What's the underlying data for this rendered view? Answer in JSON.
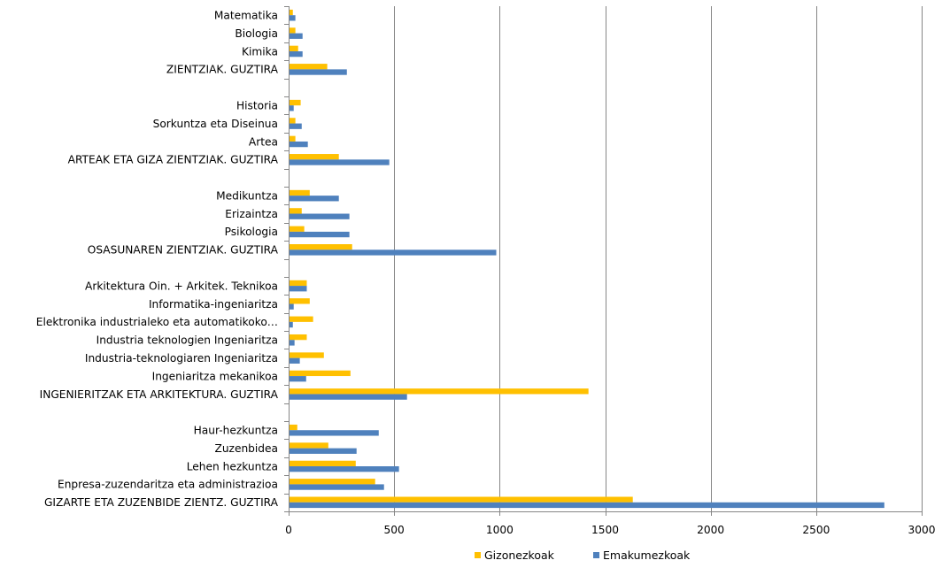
{
  "chart_data": {
    "type": "bar",
    "orientation": "horizontal",
    "title": "",
    "xlabel": "",
    "ylabel": "",
    "xlim": [
      0,
      3000
    ],
    "xticks": [
      0,
      500,
      1000,
      1500,
      2000,
      2500,
      3000
    ],
    "grid": "vertical",
    "legend_position": "bottom",
    "categories": [
      "Matematika",
      "Biologia",
      "Kimika",
      "ZIENTZIAK. GUZTIRA",
      "",
      "Historia",
      "Sorkuntza eta Diseinua",
      "Artea",
      "ARTEAK ETA GIZA ZIENTZIAK. GUZTIRA",
      "",
      "Medikuntza",
      "Erizaintza",
      "Psikologia",
      "OSASUNAREN ZIENTZIAK. GUZTIRA",
      "",
      "Arkitektura Oin. + Arkitek. Teknikoa",
      "Informatika-ingeniaritza",
      "Elektronika industrialeko eta automatikoko…",
      "Industria teknologien Ingeniaritza",
      "Industria-teknologiaren Ingeniaritza",
      "Ingeniaritza mekanikoa",
      "INGENIERITZAK ETA ARKITEKTURA. GUZTIRA",
      "",
      "Haur-hezkuntza",
      "Zuzenbidea",
      "Lehen hezkuntza",
      "Enpresa-zuzendaritza eta administrazioa",
      "GIZARTE ETA ZUZENBIDE ZIENTZ. GUZTIRA"
    ],
    "series": [
      {
        "name": "Gizonezkoak",
        "color": "#FFC000",
        "values": [
          20,
          32,
          45,
          183,
          null,
          57,
          32,
          32,
          238,
          null,
          100,
          62,
          74,
          301,
          null,
          86,
          100,
          116,
          86,
          167,
          293,
          1421,
          null,
          41,
          188,
          318,
          410,
          1631
        ]
      },
      {
        "name": "Emakumezkoak",
        "color": "#4F81BD",
        "values": [
          32,
          66,
          66,
          276,
          null,
          24,
          62,
          91,
          477,
          null,
          238,
          288,
          288,
          984,
          null,
          86,
          24,
          20,
          28,
          53,
          83,
          561,
          null,
          427,
          322,
          523,
          452,
          2823
        ]
      }
    ]
  },
  "legend": {
    "items": [
      {
        "label": "Gizonezkoak",
        "color": "#FFC000"
      },
      {
        "label": "Emakumezkoak",
        "color": "#4F81BD"
      }
    ]
  }
}
